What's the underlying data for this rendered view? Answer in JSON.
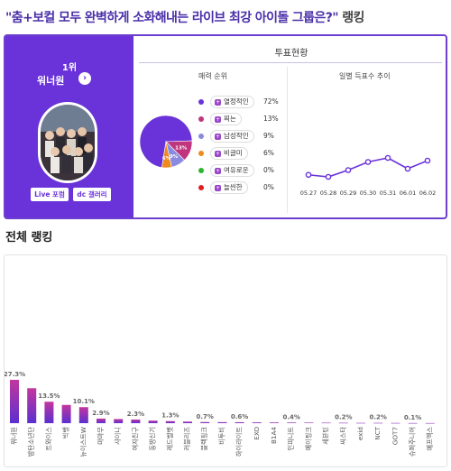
{
  "header": {
    "title": "\"춤+보컬 모두 완벽하게 소화해내는 라이브 최강 아이돌 그룹은?\"",
    "suffix": "랭킹"
  },
  "winner": {
    "rank_label": "1위",
    "name": "워너원",
    "live_button": "Live 포럼",
    "gallery_button": "dc 갤러리"
  },
  "vote_status": {
    "heading": "투표현황",
    "charm_heading": "매력 순위",
    "daily_heading": "일별 득표수 추이",
    "legend": [
      {
        "label": "열정적인",
        "pct": "72%",
        "color": "#6a33d9"
      },
      {
        "label": "찌는",
        "pct": "13%",
        "color": "#c0367e"
      },
      {
        "label": "남성적인",
        "pct": "9%",
        "color": "#8a8ae0"
      },
      {
        "label": "비글미",
        "pct": "6%",
        "color": "#ee8a1e"
      },
      {
        "label": "여유로운",
        "pct": "0%",
        "color": "#2cb52c"
      },
      {
        "label": "늘씬한",
        "pct": "0%",
        "color": "#e02020"
      }
    ],
    "pie_labels": [
      "13%",
      "9%",
      "6%"
    ]
  },
  "section_title": "전체 랭킹",
  "chart_data": [
    {
      "type": "pie",
      "title": "매력 순위",
      "categories": [
        "열정적인",
        "찌는",
        "남성적인",
        "비글미",
        "여유로운",
        "늘씬한"
      ],
      "values": [
        72,
        13,
        9,
        6,
        0,
        0
      ]
    },
    {
      "type": "line",
      "title": "일별 득표수 추이",
      "x": [
        "05.27",
        "05.28",
        "05.29",
        "05.30",
        "05.31",
        "06.01",
        "06.02"
      ],
      "values": [
        55,
        52,
        62,
        74,
        80,
        64,
        76
      ],
      "ylim": [
        20,
        100
      ]
    },
    {
      "type": "bar",
      "title": "전체 랭킹",
      "categories": [
        "워너원",
        "방탄소년단",
        "트와이스",
        "빅뱅",
        "뉴이스트W",
        "마마무",
        "샤이니",
        "여자친구",
        "동방신기",
        "레드벨벳",
        "러블리즈",
        "블랙핑크",
        "비투비",
        "하이라이트",
        "EXO",
        "B1A4",
        "인피니트",
        "에이핑크",
        "세븐틴",
        "씨스타",
        "exid",
        "NCT",
        "GOT7",
        "슈퍼주니어",
        "에프엑스"
      ],
      "values": [
        27.3,
        22.0,
        13.5,
        11.5,
        10.1,
        2.9,
        2.6,
        2.3,
        1.6,
        1.3,
        1.0,
        0.7,
        0.65,
        0.6,
        0.5,
        0.45,
        0.4,
        0.35,
        0.3,
        0.25,
        0.2,
        0.2,
        0.15,
        0.1,
        0.08
      ],
      "data_labels": [
        "27.3%",
        "",
        "13.5%",
        "",
        "10.1%",
        "2.9%",
        "",
        "2.3%",
        "",
        "1.3%",
        "",
        "0.7%",
        "",
        "0.6%",
        "",
        "",
        "0.4%",
        "",
        "",
        "0.2%",
        "",
        "0.2%",
        "",
        "0.1%",
        ""
      ],
      "ylim": [
        0,
        100
      ]
    }
  ]
}
